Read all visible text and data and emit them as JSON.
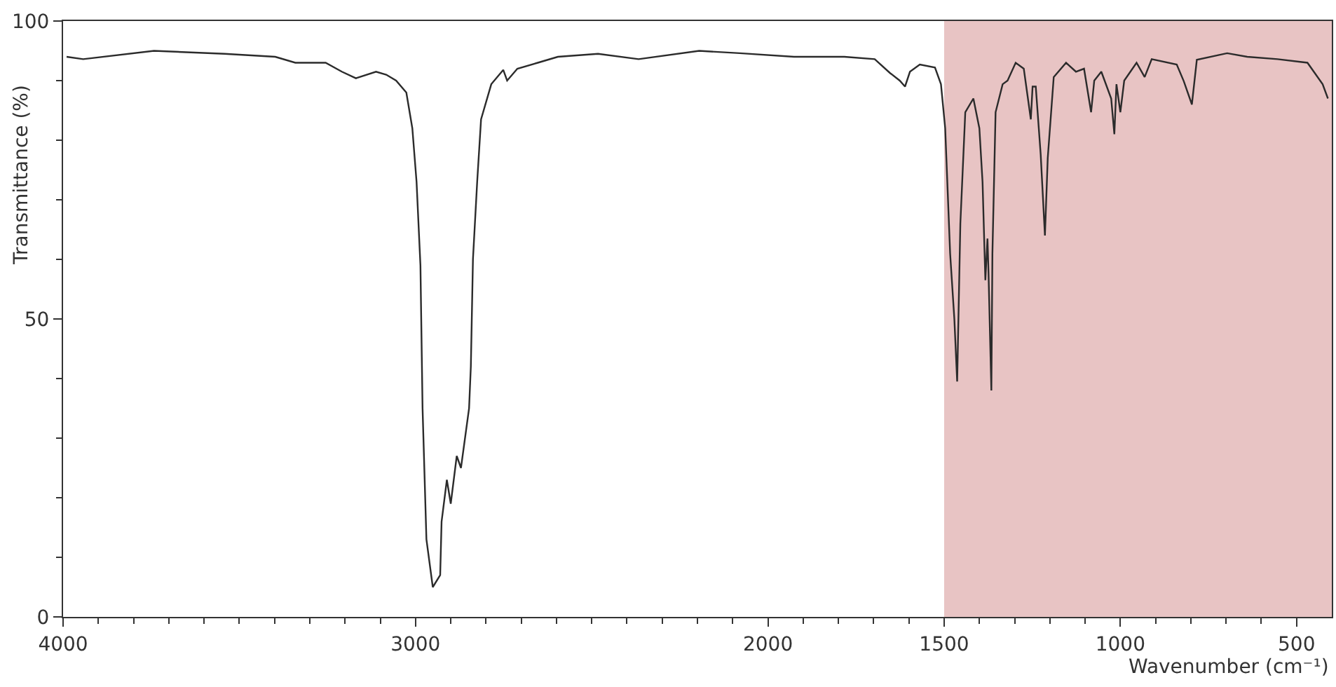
{
  "chart_data": {
    "type": "line",
    "xlabel": "Wavenumber (cm⁻¹)",
    "ylabel": "Transmittance (%)",
    "xlim": [
      4000,
      400
    ],
    "ylim": [
      0,
      100
    ],
    "xticks": [
      4000,
      {
        "value": 3900,
        "label": null
      },
      {
        "value": 3800,
        "label": null
      },
      {
        "value": 3700,
        "label": null
      },
      {
        "value": 3600,
        "label": null
      },
      {
        "value": 3500,
        "label": null
      },
      {
        "value": 3400,
        "label": null
      },
      {
        "value": 3300,
        "label": null
      },
      {
        "value": 3200,
        "label": null
      },
      {
        "value": 3100,
        "label": null
      },
      3000,
      {
        "value": 2900,
        "label": null
      },
      {
        "value": 2800,
        "label": null
      },
      {
        "value": 2700,
        "label": null
      },
      {
        "value": 2600,
        "label": null
      },
      {
        "value": 2500,
        "label": null
      },
      {
        "value": 2400,
        "label": null
      },
      {
        "value": 2300,
        "label": null
      },
      {
        "value": 2200,
        "label": null
      },
      {
        "value": 2100,
        "label": null
      },
      2000,
      {
        "value": 1900,
        "label": null
      },
      {
        "value": 1800,
        "label": null
      },
      {
        "value": 1700,
        "label": null
      },
      {
        "value": 1600,
        "label": null
      },
      1500,
      {
        "value": 1400,
        "label": null
      },
      {
        "value": 1300,
        "label": null
      },
      {
        "value": 1200,
        "label": null
      },
      {
        "value": 1100,
        "label": null
      },
      1000,
      {
        "value": 900,
        "label": null
      },
      {
        "value": 800,
        "label": null
      },
      {
        "value": 700,
        "label": null
      },
      {
        "value": 600,
        "label": null
      },
      500
    ],
    "yticks": [
      0,
      {
        "value": 10,
        "label": null
      },
      {
        "value": 20,
        "label": null
      },
      {
        "value": 30,
        "label": null
      },
      {
        "value": 40,
        "label": null
      },
      50,
      {
        "value": 60,
        "label": null
      },
      {
        "value": 70,
        "label": null
      },
      {
        "value": 80,
        "label": null
      },
      {
        "value": 90,
        "label": null
      },
      100
    ],
    "bands": [
      {
        "axis": "x",
        "from": 1500,
        "to": 400,
        "color": "#e8c4c4"
      }
    ],
    "series": [
      {
        "color": "#2b2b2b",
        "x": [
          3990,
          3943,
          3742,
          3542,
          3398,
          3341,
          3255,
          3209,
          3169,
          3112,
          3083,
          3055,
          3026,
          3009,
          2997,
          2986,
          2980,
          2969,
          2951,
          2930,
          2926,
          2911,
          2900,
          2883,
          2871,
          2848,
          2843,
          2837,
          2825,
          2814,
          2785,
          2751,
          2740,
          2711,
          2653,
          2596,
          2482,
          2367,
          2195,
          2080,
          1926,
          1783,
          1697,
          1654,
          1626,
          1611,
          1597,
          1569,
          1526,
          1509,
          1497,
          1483,
          1471,
          1463,
          1454,
          1440,
          1417,
          1400,
          1391,
          1383,
          1377,
          1374,
          1366,
          1363,
          1354,
          1334,
          1320,
          1297,
          1274,
          1254,
          1249,
          1240,
          1226,
          1214,
          1206,
          1189,
          1154,
          1126,
          1103,
          1083,
          1074,
          1054,
          1026,
          1017,
          1011,
          1000,
          989,
          954,
          931,
          911,
          840,
          820,
          797,
          783,
          697,
          640,
          554,
          469,
          426,
          411
        ],
        "values": [
          94,
          93.6,
          95,
          94.5,
          94,
          93,
          93,
          91.5,
          90.4,
          91.5,
          91,
          90,
          88,
          82,
          73,
          59,
          35,
          13,
          5,
          7,
          16,
          23,
          19,
          27,
          25,
          35,
          42,
          60,
          73,
          83.5,
          89.4,
          91.8,
          90,
          92,
          93,
          94,
          94.5,
          93.6,
          95,
          94.6,
          94,
          94,
          93.6,
          91.3,
          90,
          89,
          91.5,
          92.7,
          92.2,
          89.4,
          82,
          61,
          50,
          39.5,
          66,
          84.7,
          87,
          82,
          73,
          56.5,
          63.5,
          57.6,
          38,
          61,
          84.7,
          89.4,
          90,
          93,
          92,
          83.5,
          89,
          89,
          77.6,
          64,
          77,
          90.6,
          93,
          91.5,
          92,
          84.7,
          90,
          91.5,
          87,
          81,
          89.4,
          84.7,
          90,
          93,
          90.6,
          93.6,
          92.7,
          89.9,
          86,
          93.5,
          94.6,
          94,
          93.6,
          93,
          89.4,
          87
        ]
      }
    ]
  }
}
